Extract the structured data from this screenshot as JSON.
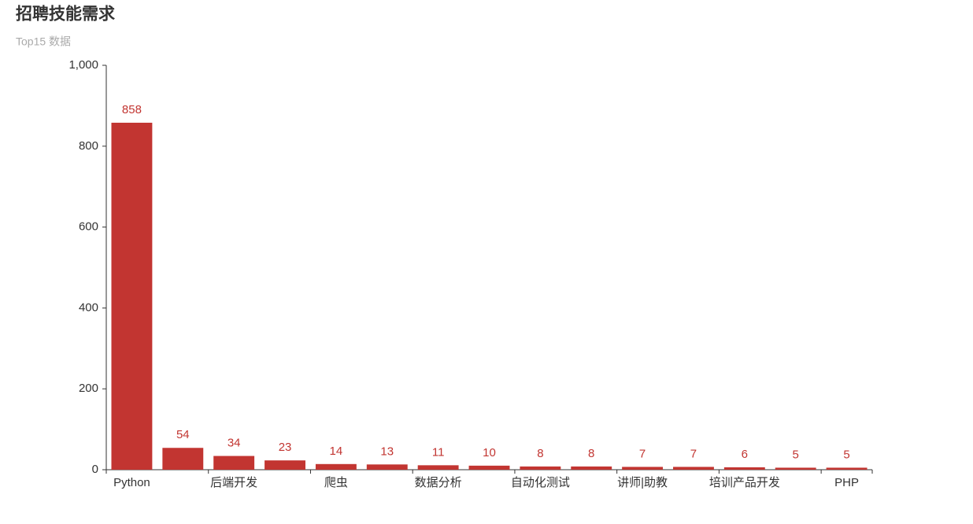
{
  "chart_data": {
    "type": "bar",
    "title": "招聘技能需求",
    "subtitle": "Top15 数据",
    "categories": [
      "Python",
      null,
      "后端开发",
      null,
      "爬虫",
      null,
      "数据分析",
      null,
      "自动化测试",
      null,
      "讲师|助教",
      null,
      "培训产品开发",
      null,
      "PHP"
    ],
    "values": [
      858,
      54,
      34,
      23,
      14,
      13,
      11,
      10,
      8,
      8,
      7,
      7,
      6,
      5,
      5
    ],
    "color": "#c23531",
    "ylim": [
      0,
      1000
    ],
    "yticks": [
      0,
      200,
      400,
      600,
      800,
      {
        "value": 1000,
        "label": "1,000"
      }
    ],
    "grid": false
  }
}
